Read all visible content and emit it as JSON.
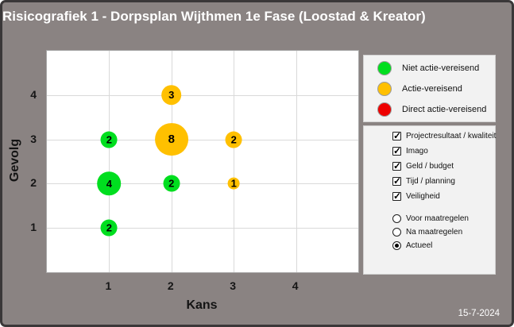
{
  "colors": {
    "background": "#8a8382",
    "frame_border": "#3a3738",
    "plot_background": "#ffffff",
    "gridline": "#d9d9d9",
    "green": "#00de1f",
    "orange": "#ffc000",
    "red": "#ee0000",
    "panel_background": "#f2f2f2"
  },
  "legend": {
    "items": [
      {
        "label": "Niet actie-vereisend",
        "color": "#00de1f"
      },
      {
        "label": "Actie-vereisend",
        "color": "#ffc000"
      },
      {
        "label": "Direct actie-vereisend",
        "color": "#ee0000"
      }
    ]
  },
  "filters": {
    "checkboxes": [
      {
        "label": "Projectresultaat / kwaliteit",
        "checked": true
      },
      {
        "label": "Imago",
        "checked": true
      },
      {
        "label": "Geld / budget",
        "checked": true
      },
      {
        "label": "Tijd / planning",
        "checked": true
      },
      {
        "label": "Veiligheid",
        "checked": true
      }
    ],
    "radios": [
      {
        "label": "Voor maatregelen",
        "selected": false
      },
      {
        "label": "Na maatregelen",
        "selected": false
      },
      {
        "label": "Actueel",
        "selected": true
      }
    ]
  },
  "footer": {
    "date": "15-7-2024"
  },
  "chart_data": {
    "type": "scatter",
    "subtype": "bubble",
    "title": "Risicografiek 1 - Dorpsplan Wijthmen 1e Fase (Loostad & Kreator)",
    "xlabel": "Kans",
    "ylabel": "Gevolg",
    "xlim": [
      0,
      5
    ],
    "ylim": [
      0,
      5
    ],
    "x_ticks": [
      1,
      2,
      3,
      4
    ],
    "y_ticks": [
      1,
      2,
      3,
      4
    ],
    "grid": true,
    "legend_position": "right",
    "bubble_radius_scale": 7.4,
    "points": [
      {
        "x": 2,
        "y": 4,
        "count": 3,
        "category": "actie-vereisend",
        "color": "#ffc000"
      },
      {
        "x": 1,
        "y": 3,
        "count": 2,
        "category": "niet-actie-vereisend",
        "color": "#00de1f"
      },
      {
        "x": 2,
        "y": 3,
        "count": 8,
        "category": "actie-vereisend",
        "color": "#ffc000"
      },
      {
        "x": 3,
        "y": 3,
        "count": 2,
        "category": "actie-vereisend",
        "color": "#ffc000"
      },
      {
        "x": 1,
        "y": 2,
        "count": 4,
        "category": "niet-actie-vereisend",
        "color": "#00de1f"
      },
      {
        "x": 2,
        "y": 2,
        "count": 2,
        "category": "niet-actie-vereisend",
        "color": "#00de1f"
      },
      {
        "x": 3,
        "y": 2,
        "count": 1,
        "category": "actie-vereisend",
        "color": "#ffc000"
      },
      {
        "x": 1,
        "y": 1,
        "count": 2,
        "category": "niet-actie-vereisend",
        "color": "#00de1f"
      }
    ]
  }
}
